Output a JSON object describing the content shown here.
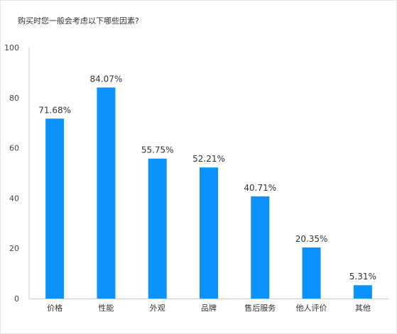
{
  "title": "购买时您一般会考虑以下哪些因素?",
  "colors": {
    "bar": "#0b93fb",
    "axis": "#c9ccd4",
    "text": "#333333"
  },
  "chart_data": {
    "type": "bar",
    "title": "购买时您一般会考虑以下哪些因素?",
    "xlabel": "",
    "ylabel": "",
    "ylim": [
      0,
      100
    ],
    "yticks": [
      0,
      20,
      40,
      60,
      80,
      100
    ],
    "grid": false,
    "legend": "none",
    "categories": [
      "价格",
      "性能",
      "外观",
      "品牌",
      "售后服务",
      "他人评价",
      "其他"
    ],
    "values": [
      71.68,
      84.07,
      55.75,
      52.21,
      40.71,
      20.35,
      5.31
    ],
    "data_labels": [
      "71.68%",
      "84.07%",
      "55.75%",
      "52.21%",
      "40.71%",
      "20.35%",
      "5.31%"
    ]
  }
}
